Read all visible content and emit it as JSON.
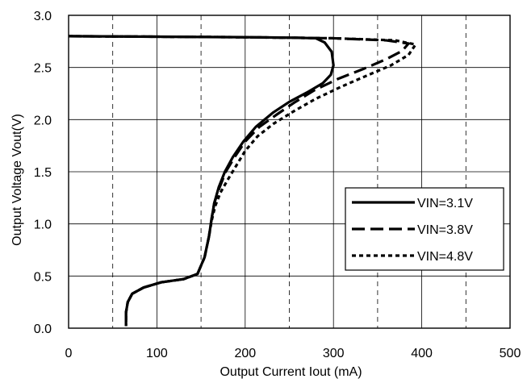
{
  "chart_data": {
    "type": "line",
    "title": "",
    "xlabel": "Output Current Iout (mA)",
    "ylabel": "Output Voltage Vout(V)",
    "xlim": [
      0,
      500
    ],
    "ylim": [
      0,
      3.0
    ],
    "x_ticks": [
      "0",
      "100",
      "200",
      "300",
      "400",
      "500"
    ],
    "y_ticks": [
      "0.0",
      "0.5",
      "1.0",
      "1.5",
      "2.0",
      "2.5",
      "3.0"
    ],
    "grid": {
      "horizontal": "solid",
      "vertical_major": "solid",
      "vertical_minor": "dashed"
    },
    "legend_position": "lower-right",
    "series": [
      {
        "name": "VIN=3.1V",
        "style": "solid",
        "points": [
          [
            0,
            2.8
          ],
          [
            100,
            2.795
          ],
          [
            200,
            2.79
          ],
          [
            260,
            2.785
          ],
          [
            280,
            2.78
          ],
          [
            290,
            2.74
          ],
          [
            298,
            2.65
          ],
          [
            300,
            2.52
          ],
          [
            297,
            2.43
          ],
          [
            288,
            2.35
          ],
          [
            270,
            2.26
          ],
          [
            250,
            2.17
          ],
          [
            232,
            2.07
          ],
          [
            212,
            1.93
          ],
          [
            198,
            1.79
          ],
          [
            186,
            1.64
          ],
          [
            177,
            1.5
          ],
          [
            170,
            1.35
          ],
          [
            165,
            1.2
          ],
          [
            162,
            1.05
          ],
          [
            159,
            0.88
          ],
          [
            154,
            0.68
          ],
          [
            146,
            0.52
          ],
          [
            130,
            0.47
          ],
          [
            105,
            0.44
          ],
          [
            85,
            0.39
          ],
          [
            72,
            0.33
          ],
          [
            67,
            0.25
          ],
          [
            65,
            0.15
          ],
          [
            65,
            0.02
          ]
        ]
      },
      {
        "name": "VIN=3.8V",
        "style": "dash",
        "points": [
          [
            0,
            2.8
          ],
          [
            100,
            2.795
          ],
          [
            200,
            2.79
          ],
          [
            300,
            2.78
          ],
          [
            360,
            2.76
          ],
          [
            385,
            2.73
          ],
          [
            378,
            2.66
          ],
          [
            360,
            2.58
          ],
          [
            335,
            2.49
          ],
          [
            305,
            2.39
          ],
          [
            278,
            2.28
          ],
          [
            255,
            2.16
          ],
          [
            236,
            2.05
          ],
          [
            216,
            1.93
          ],
          [
            200,
            1.79
          ],
          [
            188,
            1.64
          ],
          [
            178,
            1.5
          ],
          [
            171,
            1.35
          ],
          [
            165,
            1.2
          ],
          [
            162,
            1.05
          ],
          [
            159,
            0.88
          ],
          [
            154,
            0.68
          ],
          [
            146,
            0.52
          ],
          [
            130,
            0.47
          ],
          [
            105,
            0.44
          ],
          [
            85,
            0.39
          ],
          [
            72,
            0.33
          ],
          [
            67,
            0.25
          ],
          [
            65,
            0.15
          ],
          [
            65,
            0.02
          ]
        ]
      },
      {
        "name": "VIN=4.8V",
        "style": "dot",
        "points": [
          [
            0,
            2.8
          ],
          [
            100,
            2.795
          ],
          [
            200,
            2.79
          ],
          [
            300,
            2.78
          ],
          [
            370,
            2.76
          ],
          [
            393,
            2.72
          ],
          [
            385,
            2.62
          ],
          [
            365,
            2.52
          ],
          [
            340,
            2.43
          ],
          [
            310,
            2.32
          ],
          [
            280,
            2.2
          ],
          [
            255,
            2.08
          ],
          [
            232,
            1.96
          ],
          [
            214,
            1.84
          ],
          [
            200,
            1.7
          ],
          [
            190,
            1.56
          ],
          [
            180,
            1.42
          ],
          [
            172,
            1.3
          ],
          [
            166,
            1.17
          ],
          [
            162,
            1.03
          ],
          [
            159,
            0.88
          ],
          [
            154,
            0.68
          ],
          [
            146,
            0.52
          ],
          [
            130,
            0.47
          ],
          [
            105,
            0.44
          ],
          [
            85,
            0.39
          ],
          [
            72,
            0.33
          ],
          [
            67,
            0.25
          ],
          [
            65,
            0.15
          ],
          [
            65,
            0.02
          ]
        ]
      }
    ]
  }
}
